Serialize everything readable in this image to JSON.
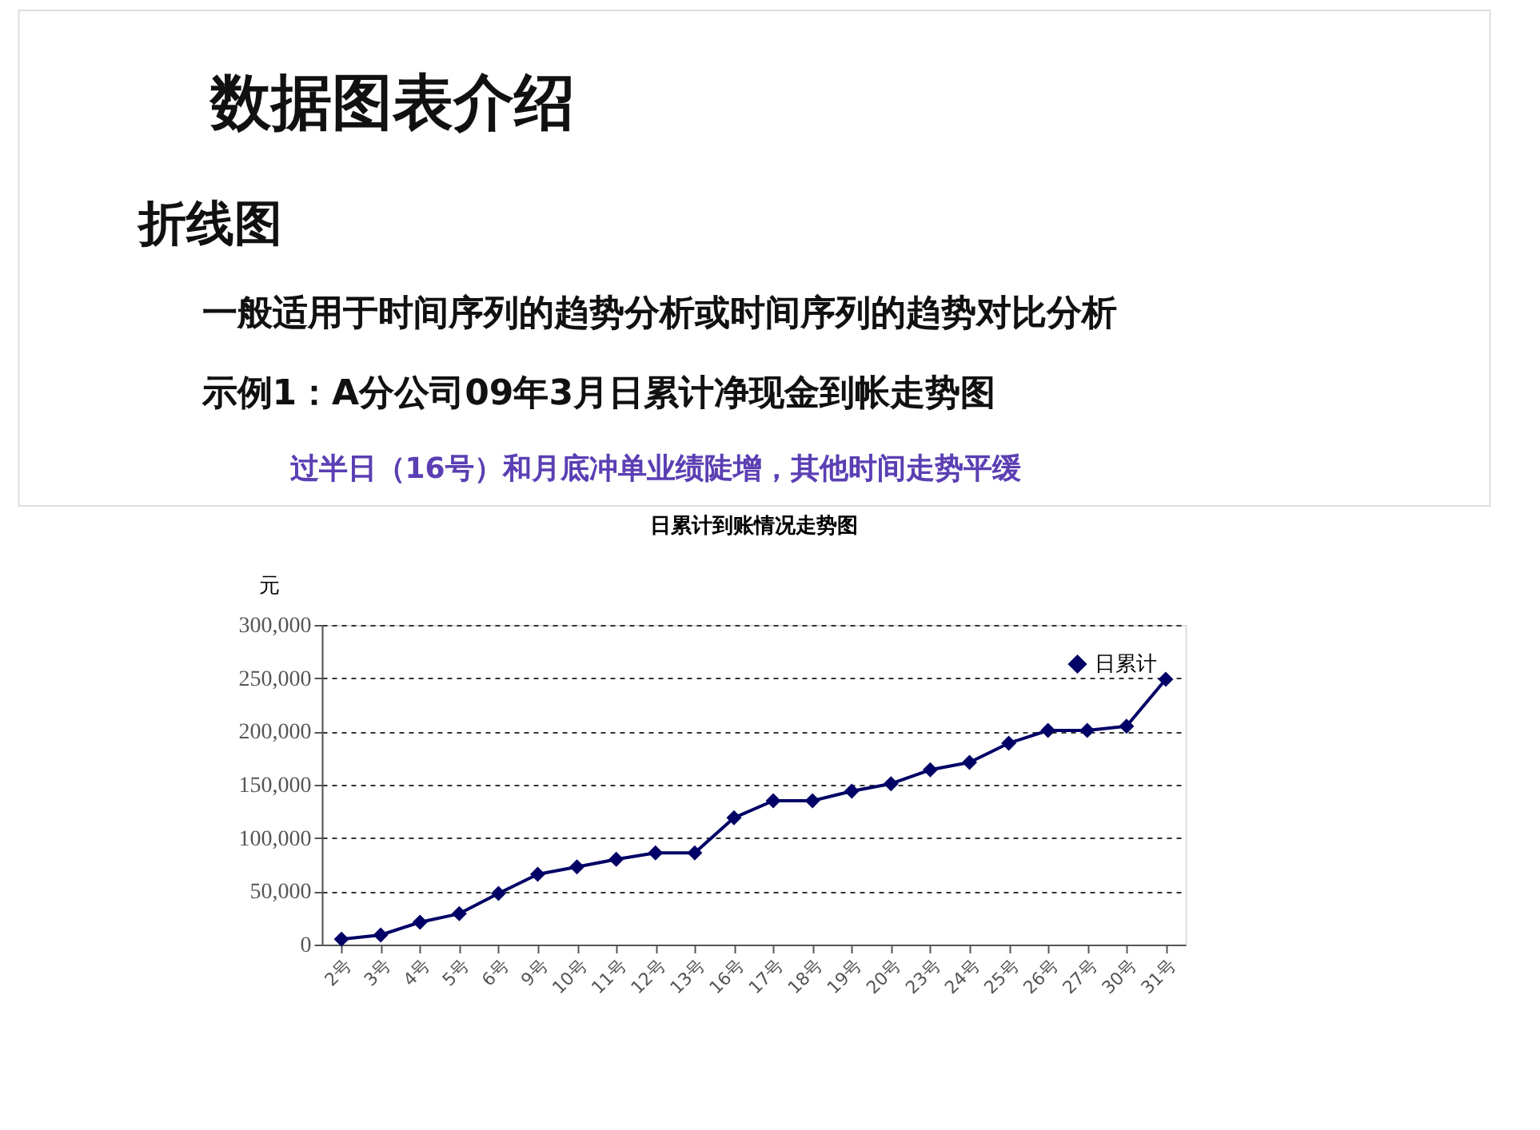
{
  "chart_data": {
    "type": "line",
    "title": "日累计到账情况走势图",
    "subtitle": "数据图表介绍",
    "ylabel": "元",
    "annotations": [
      "折线图",
      "一般适用于时间序列的趋势分析或时间序列的趋势对比分析",
      "示例1：A分公司09年3月日累计净现金到帐走势图",
      "过半日（16号）和月底冲单业绩陡增，其他时间走势平缓"
    ],
    "categories": [
      "2号",
      "3号",
      "4号",
      "5号",
      "6号",
      "9号",
      "10号",
      "11号",
      "12号",
      "13号",
      "16号",
      "17号",
      "18号",
      "19号",
      "20号",
      "23号",
      "24号",
      "25号",
      "26号",
      "27号",
      "30号",
      "31号"
    ],
    "series": [
      {
        "name": "日累计",
        "color": "#000066",
        "values": [
          5000,
          9000,
          21000,
          29000,
          48000,
          66000,
          73000,
          80000,
          86000,
          86000,
          119000,
          135000,
          135000,
          144000,
          151000,
          164000,
          171000,
          189000,
          201000,
          201000,
          205000,
          249000
        ]
      }
    ],
    "ylim": [
      0,
      300000
    ],
    "yticks": [
      0,
      {
        "value": 50000,
        "label": "50,000"
      },
      {
        "value": 100000,
        "label": "100,000"
      },
      {
        "value": 150000,
        "label": "150,000"
      },
      {
        "value": 200000,
        "label": "200,000"
      },
      {
        "value": 250000,
        "label": "250,000"
      },
      {
        "value": 300000,
        "label": "300,000"
      }
    ],
    "grid": "y",
    "legend": "top right",
    "marker": "diamond",
    "line_style": "solid"
  }
}
